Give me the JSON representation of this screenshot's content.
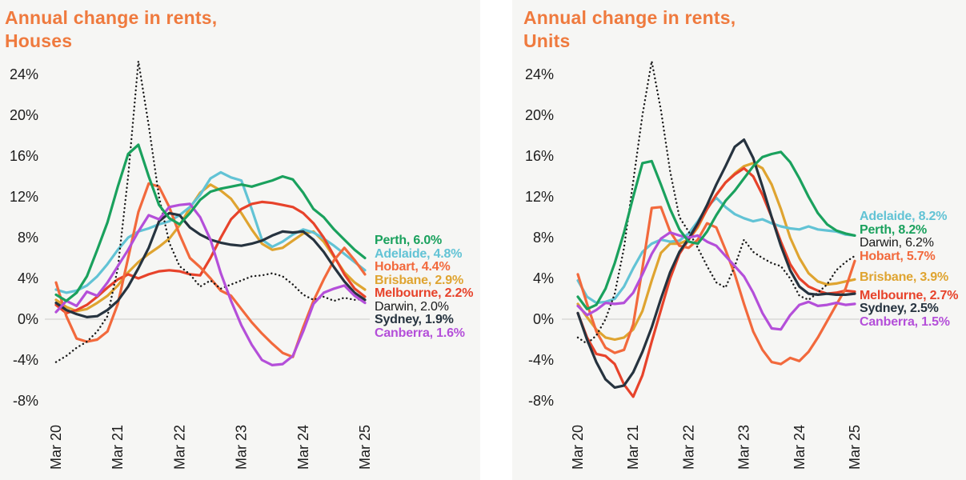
{
  "page": {
    "panel_background": "#f6f6f4",
    "title_color": "#ef7a3e",
    "tick_color": "#1c1c1c",
    "zero_line_color": "#d9d9d6"
  },
  "chart_data": [
    {
      "type": "line",
      "title_line1": "Annual change in rents,",
      "title_line2": "Houses",
      "x_unit": "months since Mar 2020, monthly series Mar 2020 - Mar 2025",
      "x_tick_labels": [
        "Mar 20",
        "Mar 21",
        "Mar 22",
        "Mar 23",
        "Mar 24",
        "Mar 25"
      ],
      "x_months": [
        0,
        2,
        4,
        6,
        8,
        10,
        12,
        14,
        16,
        18,
        20,
        22,
        24,
        26,
        28,
        30,
        32,
        34,
        36,
        38,
        40,
        42,
        44,
        46,
        48,
        50,
        52,
        54,
        56,
        58,
        60
      ],
      "yticks": [
        {
          "label": "24%",
          "value": 24
        },
        {
          "label": "20%",
          "value": 20
        },
        {
          "label": "16%",
          "value": 16
        },
        {
          "label": "12%",
          "value": 12
        },
        {
          "label": "8%",
          "value": 8
        },
        {
          "label": "4%",
          "value": 4
        },
        {
          "label": "0%",
          "value": 0
        },
        {
          "label": "-4%",
          "value": -4
        },
        {
          "label": "-8%",
          "value": -8
        }
      ],
      "ylim": [
        -9,
        26
      ],
      "grid": "zero line only",
      "legend_position": "right",
      "series": [
        {
          "name": "Brisbane",
          "color": "#dfa430",
          "dotted": false,
          "values": [
            1.9,
            1.2,
            0.8,
            1.0,
            1.6,
            2.3,
            3.3,
            4.6,
            5.6,
            6.4,
            7.1,
            7.9,
            9.2,
            10.9,
            12.4,
            13.2,
            12.6,
            11.8,
            10.4,
            8.8,
            7.4,
            6.8,
            7.0,
            7.7,
            8.4,
            8.6,
            7.6,
            6.1,
            4.6,
            3.6,
            2.9
          ]
        },
        {
          "name": "Adelaide",
          "color": "#62c3d5",
          "dotted": false,
          "values": [
            2.9,
            2.6,
            2.8,
            3.3,
            4.2,
            5.4,
            6.8,
            8.0,
            8.6,
            8.9,
            9.3,
            9.6,
            10.2,
            11.0,
            12.2,
            13.8,
            14.4,
            13.9,
            13.6,
            10.8,
            7.8,
            7.1,
            7.6,
            8.3,
            8.8,
            8.5,
            7.9,
            7.2,
            6.4,
            5.6,
            4.8
          ]
        },
        {
          "name": "Melbourne",
          "color": "#e7432b",
          "dotted": false,
          "values": [
            1.4,
            0.6,
            0.9,
            1.4,
            2.2,
            3.1,
            3.9,
            4.4,
            4.0,
            4.4,
            4.7,
            4.8,
            4.7,
            4.4,
            4.3,
            6.0,
            8.0,
            9.8,
            10.8,
            11.3,
            11.5,
            11.4,
            11.2,
            11.0,
            10.4,
            9.4,
            8.0,
            6.2,
            4.4,
            3.0,
            2.2
          ]
        },
        {
          "name": "Hobart",
          "color": "#f2693c",
          "dotted": false,
          "values": [
            3.6,
            0.3,
            -1.9,
            -2.2,
            -2.0,
            -1.2,
            1.5,
            6.0,
            10.5,
            13.3,
            13.0,
            11.0,
            8.3,
            6.0,
            5.1,
            4.0,
            2.8,
            2.3,
            1.0,
            -0.3,
            -1.4,
            -2.4,
            -3.3,
            -3.7,
            -0.8,
            1.8,
            3.9,
            5.8,
            7.0,
            5.8,
            4.4
          ]
        },
        {
          "name": "Darwin",
          "color": "#1a1a1a",
          "dotted": true,
          "values": [
            -4.2,
            -3.6,
            -2.8,
            -2.2,
            -1.2,
            0.3,
            5.0,
            14.0,
            25.3,
            19.0,
            12.0,
            7.5,
            5.2,
            4.4,
            3.2,
            3.8,
            3.0,
            3.4,
            3.8,
            4.2,
            4.3,
            4.5,
            4.2,
            3.4,
            2.4,
            1.9,
            2.2,
            1.8,
            2.1,
            1.9,
            2.0
          ]
        },
        {
          "name": "Sydney",
          "color": "#26333f",
          "dotted": false,
          "values": [
            1.6,
            0.9,
            0.5,
            0.2,
            0.3,
            0.9,
            1.8,
            3.2,
            5.0,
            7.0,
            9.6,
            10.4,
            10.2,
            9.0,
            8.3,
            7.8,
            7.5,
            7.3,
            7.2,
            7.4,
            7.7,
            8.2,
            8.6,
            8.5,
            8.6,
            7.8,
            6.6,
            5.1,
            3.7,
            2.6,
            1.9
          ]
        },
        {
          "name": "Canberra",
          "color": "#b44fd9",
          "dotted": false,
          "values": [
            0.7,
            1.8,
            1.3,
            2.7,
            2.3,
            3.6,
            5.2,
            6.8,
            8.6,
            10.2,
            9.8,
            11.0,
            11.2,
            11.3,
            10.0,
            7.8,
            4.5,
            1.8,
            -0.6,
            -2.5,
            -4.0,
            -4.5,
            -4.4,
            -3.6,
            -1.2,
            1.5,
            2.6,
            3.0,
            3.3,
            2.3,
            1.6
          ]
        },
        {
          "name": "Perth",
          "color": "#1aa15d",
          "dotted": false,
          "values": [
            2.4,
            1.8,
            2.6,
            4.2,
            6.8,
            9.5,
            13.0,
            16.2,
            17.1,
            14.0,
            11.2,
            9.9,
            9.3,
            10.4,
            11.7,
            12.5,
            12.8,
            13.0,
            13.2,
            13.0,
            13.3,
            13.6,
            14.0,
            13.7,
            12.4,
            10.8,
            10.0,
            8.8,
            7.8,
            6.8,
            6.0
          ]
        }
      ],
      "legend": [
        {
          "text": "Perth, 6.0%",
          "color": "#1aa15d",
          "bold": true,
          "gap_before": 0
        },
        {
          "text": "Adelaide, 4.8%",
          "color": "#62c3d5",
          "bold": true,
          "gap_before": 0
        },
        {
          "text": "Hobart, 4.4%",
          "color": "#f2693c",
          "bold": true,
          "gap_before": 0
        },
        {
          "text": "Brisbane, 2.9%",
          "color": "#dfa430",
          "bold": true,
          "gap_before": 0
        },
        {
          "text": "Melbourne, 2.2%",
          "color": "#e7432b",
          "bold": true,
          "gap_before": 0
        },
        {
          "text": "Darwin, 2.0%",
          "color": "#1a1a1a",
          "bold": false,
          "gap_before": 0
        },
        {
          "text": "Sydney, 1.9%",
          "color": "#26333f",
          "bold": true,
          "gap_before": 0
        },
        {
          "text": "Canberra, 1.6%",
          "color": "#b44fd9",
          "bold": true,
          "gap_before": 0
        }
      ]
    },
    {
      "type": "line",
      "title_line1": "Annual change in rents,",
      "title_line2": "Units",
      "x_unit": "months since Mar 2020, monthly series Mar 2020 - Mar 2025",
      "x_tick_labels": [
        "Mar 20",
        "Mar 21",
        "Mar 22",
        "Mar 23",
        "Mar 24",
        "Mar 25"
      ],
      "x_months": [
        0,
        2,
        4,
        6,
        8,
        10,
        12,
        14,
        16,
        18,
        20,
        22,
        24,
        26,
        28,
        30,
        32,
        34,
        36,
        38,
        40,
        42,
        44,
        46,
        48,
        50,
        52,
        54,
        56,
        58,
        60
      ],
      "yticks": [
        {
          "label": "24%",
          "value": 24
        },
        {
          "label": "20%",
          "value": 20
        },
        {
          "label": "16%",
          "value": 16
        },
        {
          "label": "12%",
          "value": 12
        },
        {
          "label": "8%",
          "value": 8
        },
        {
          "label": "4%",
          "value": 4
        },
        {
          "label": "0%",
          "value": 0
        },
        {
          "label": "-4%",
          "value": -4
        },
        {
          "label": "-8%",
          "value": -8
        }
      ],
      "ylim": [
        -9,
        26
      ],
      "grid": "zero line only",
      "legend_position": "right",
      "series": [
        {
          "name": "Brisbane",
          "color": "#dfa430",
          "dotted": false,
          "values": [
            1.5,
            0.2,
            -1.0,
            -1.8,
            -2.0,
            -1.8,
            -1.0,
            0.8,
            3.8,
            6.5,
            7.4,
            7.4,
            7.8,
            9.0,
            10.8,
            12.2,
            13.4,
            14.3,
            15.0,
            15.3,
            14.8,
            13.2,
            10.8,
            8.0,
            6.0,
            4.5,
            3.7,
            3.4,
            3.5,
            3.7,
            3.9
          ]
        },
        {
          "name": "Adelaide",
          "color": "#62c3d5",
          "dotted": false,
          "values": [
            3.8,
            2.2,
            1.6,
            1.7,
            2.0,
            3.2,
            5.0,
            6.6,
            7.4,
            7.8,
            7.6,
            7.7,
            8.4,
            9.6,
            11.0,
            11.9,
            11.0,
            10.3,
            9.9,
            9.6,
            9.8,
            9.4,
            9.1,
            8.9,
            8.8,
            9.1,
            8.8,
            8.7,
            8.6,
            8.3,
            8.2
          ]
        },
        {
          "name": "Melbourne",
          "color": "#e7432b",
          "dotted": false,
          "values": [
            0.6,
            -1.8,
            -3.4,
            -3.6,
            -4.4,
            -6.4,
            -7.6,
            -5.5,
            -2.2,
            0.9,
            4.0,
            6.4,
            7.8,
            9.2,
            10.8,
            12.2,
            13.4,
            14.2,
            14.8,
            14.0,
            12.2,
            10.0,
            7.6,
            5.4,
            4.0,
            3.2,
            2.8,
            2.5,
            2.6,
            2.8,
            2.7
          ]
        },
        {
          "name": "Hobart",
          "color": "#f2693c",
          "dotted": false,
          "values": [
            4.4,
            1.5,
            -1.2,
            -2.8,
            -3.3,
            -3.0,
            -0.5,
            5.0,
            10.9,
            11.0,
            8.6,
            7.2,
            7.0,
            7.8,
            9.4,
            9.0,
            6.8,
            4.4,
            1.5,
            -1.2,
            -3.0,
            -4.2,
            -4.4,
            -3.8,
            -4.1,
            -3.2,
            -1.8,
            -0.2,
            1.4,
            3.0,
            5.7
          ]
        },
        {
          "name": "Darwin",
          "color": "#1a1a1a",
          "dotted": true,
          "values": [
            -1.8,
            -2.4,
            -1.6,
            0.0,
            2.5,
            7.0,
            13.5,
            20.0,
            25.3,
            20.5,
            14.5,
            10.0,
            8.6,
            7.0,
            5.2,
            3.6,
            3.1,
            5.2,
            7.8,
            6.6,
            6.0,
            5.5,
            5.2,
            4.0,
            2.3,
            1.9,
            2.6,
            3.4,
            4.8,
            5.6,
            6.2
          ]
        },
        {
          "name": "Sydney",
          "color": "#26333f",
          "dotted": false,
          "values": [
            0.6,
            -2.0,
            -4.2,
            -5.9,
            -6.7,
            -6.5,
            -5.2,
            -3.2,
            -0.8,
            2.0,
            4.6,
            6.6,
            7.9,
            9.4,
            11.2,
            13.2,
            15.0,
            16.9,
            17.6,
            15.8,
            13.0,
            10.0,
            7.2,
            4.8,
            3.2,
            2.5,
            2.4,
            2.5,
            2.4,
            2.4,
            2.5
          ]
        },
        {
          "name": "Canberra",
          "color": "#b44fd9",
          "dotted": false,
          "values": [
            1.3,
            0.4,
            0.9,
            1.6,
            1.5,
            1.6,
            2.6,
            4.4,
            6.4,
            7.9,
            8.5,
            8.2,
            8.0,
            8.2,
            7.6,
            7.2,
            6.2,
            5.2,
            4.2,
            2.6,
            0.6,
            -0.9,
            -1.0,
            0.4,
            1.4,
            1.7,
            1.3,
            1.4,
            1.6,
            1.4,
            1.5
          ]
        },
        {
          "name": "Perth",
          "color": "#1aa15d",
          "dotted": false,
          "values": [
            2.2,
            1.0,
            1.4,
            3.0,
            5.5,
            8.5,
            12.0,
            15.3,
            15.5,
            13.2,
            10.8,
            8.8,
            7.6,
            7.4,
            8.6,
            10.2,
            11.6,
            12.6,
            13.8,
            15.0,
            15.9,
            16.2,
            16.4,
            15.4,
            13.8,
            12.0,
            10.4,
            9.3,
            8.7,
            8.4,
            8.2
          ]
        }
      ],
      "legend": [
        {
          "text": "Adelaide, 8.2%",
          "color": "#62c3d5",
          "bold": true,
          "gap_before": 0
        },
        {
          "text": "Perth, 8.2%",
          "color": "#1aa15d",
          "bold": true,
          "gap_before": 0
        },
        {
          "text": "Darwin, 6.2%",
          "color": "#1a1a1a",
          "bold": false,
          "gap_before": 0
        },
        {
          "text": "Hobart, 5.7%",
          "color": "#f2693c",
          "bold": true,
          "gap_before": 0
        },
        {
          "text": "Brisbane, 3.9%",
          "color": "#dfa430",
          "bold": true,
          "gap_before": 10
        },
        {
          "text": "Melbourne, 2.7%",
          "color": "#e7432b",
          "bold": true,
          "gap_before": 6
        },
        {
          "text": "Sydney, 2.5%",
          "color": "#26333f",
          "bold": true,
          "gap_before": 0
        },
        {
          "text": "Canberra, 1.5%",
          "color": "#b44fd9",
          "bold": true,
          "gap_before": 0
        }
      ]
    }
  ]
}
